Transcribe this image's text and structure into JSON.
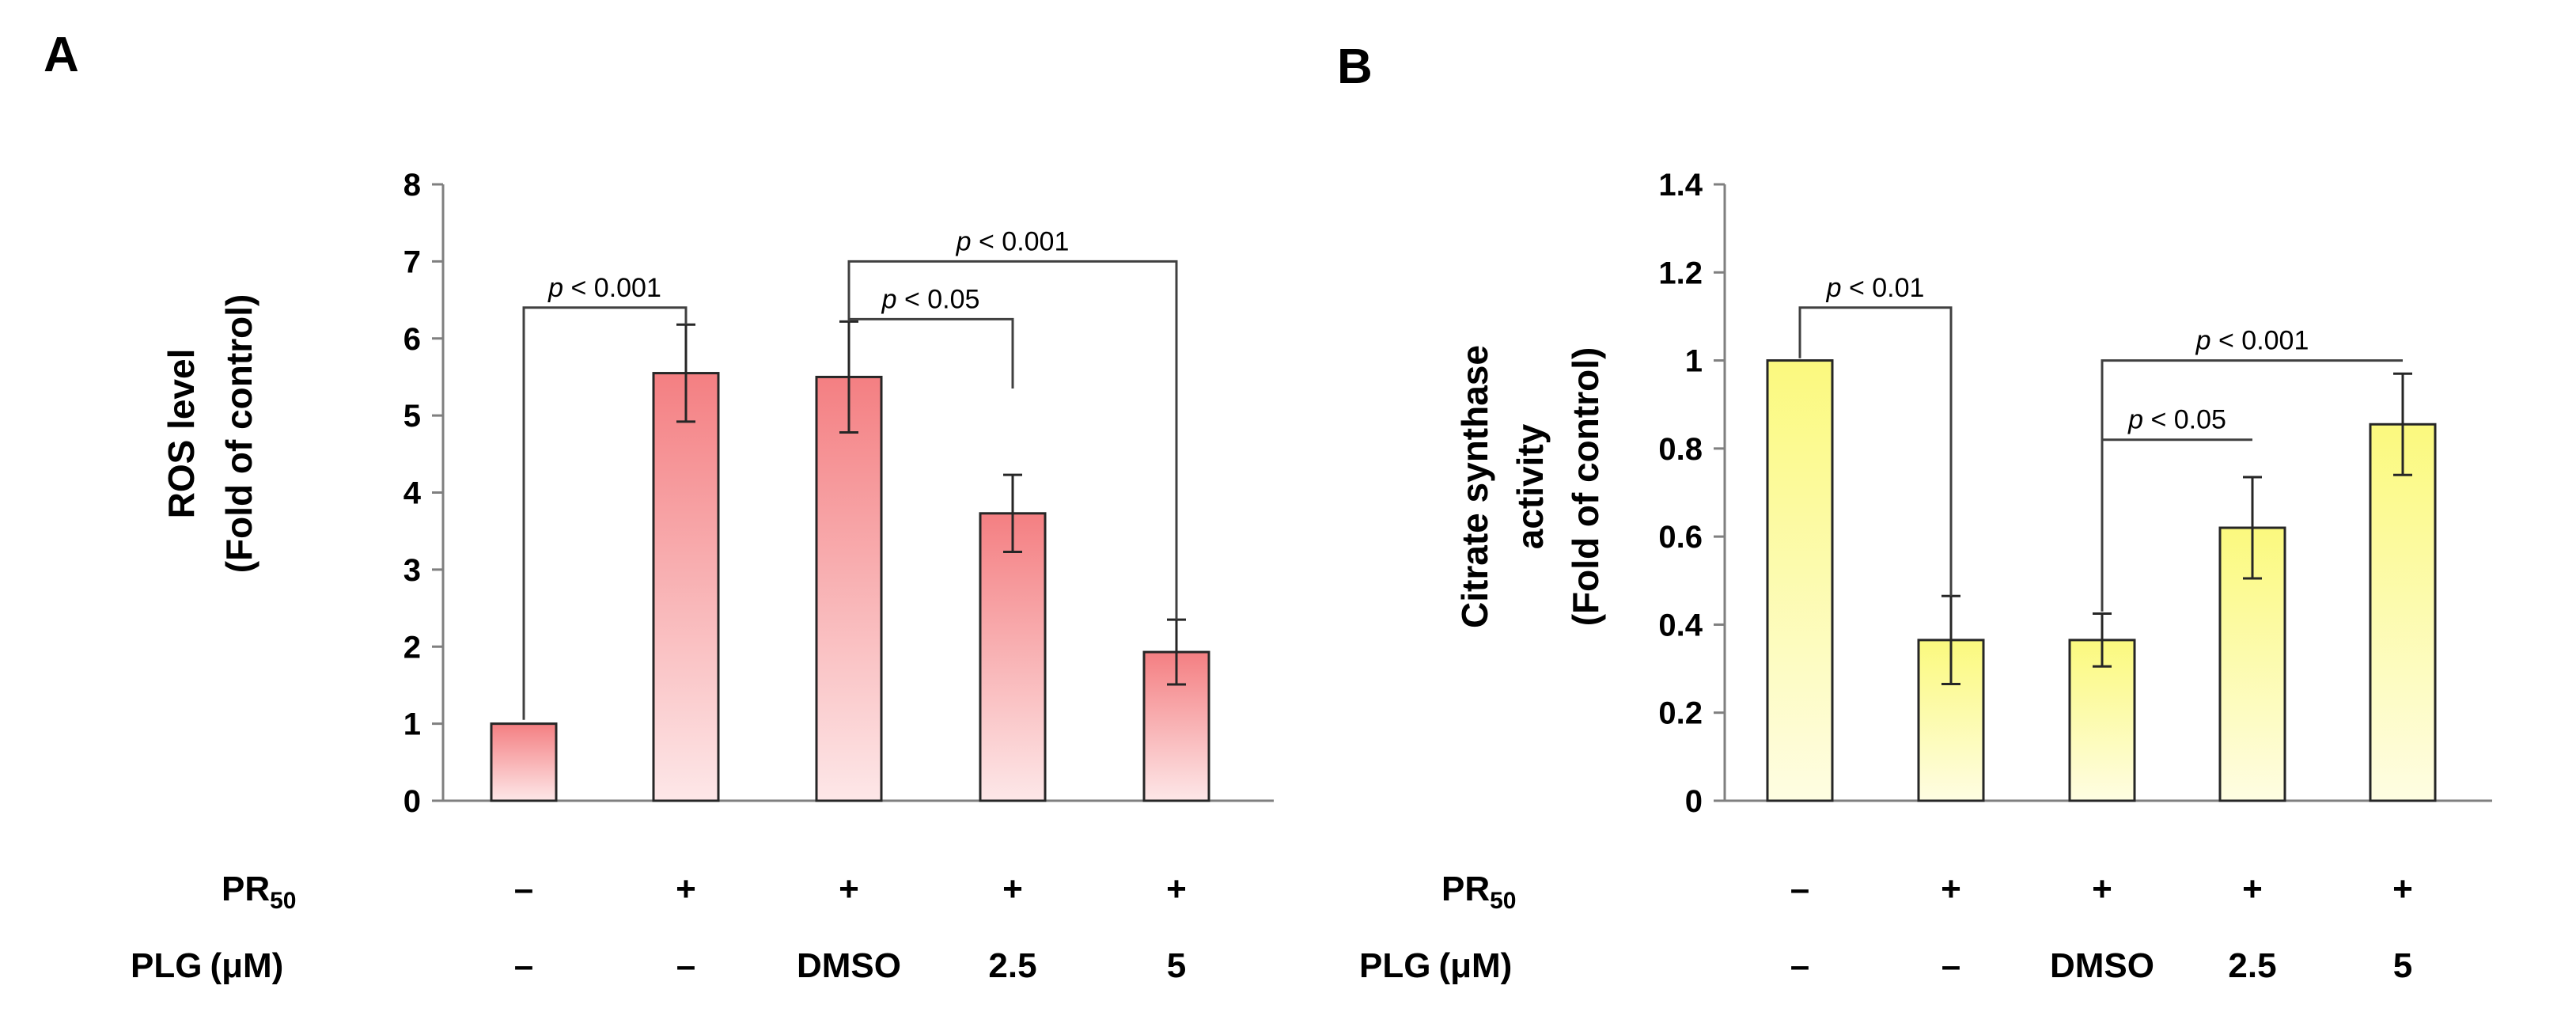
{
  "row_labels": {
    "pr_main": "PR",
    "pr_sub": "50",
    "plg_main": "PLG",
    "plg_unit": "(μM)"
  },
  "treatments": {
    "pr": [
      "–",
      "+",
      "+",
      "+",
      "+"
    ],
    "plg": [
      "–",
      "–",
      "DMSO",
      "2.5",
      "5"
    ]
  },
  "colors": {
    "panel_a_top": "#f47f82",
    "panel_a_bottom": "#fde7e8",
    "panel_b_top": "#fbf97e",
    "panel_b_bottom": "#fefde2",
    "axis": "#7f7f7f",
    "bracket": "#404040"
  },
  "chart_data": [
    {
      "panel_label": "A",
      "type": "bar",
      "ylabel_line1": "ROS level",
      "ylabel_line2": "(Fold of control)",
      "ylim": [
        0,
        8
      ],
      "yticks": [
        0,
        1,
        2,
        3,
        4,
        5,
        6,
        7,
        8
      ],
      "ytick_labels": [
        "0",
        "1",
        "2",
        "3",
        "4",
        "5",
        "6",
        "7",
        "8"
      ],
      "categories": [
        "– / –",
        "+ / –",
        "+ / DMSO",
        "+ / 2.5",
        "+ / 5"
      ],
      "values": [
        1.0,
        5.55,
        5.5,
        3.73,
        1.93
      ],
      "errors": [
        0,
        0.63,
        0.72,
        0.5,
        0.42
      ],
      "annotations": [
        {
          "p_label": "p",
          "text": " < 0.001",
          "from": 0,
          "to": 1,
          "level": 6.4,
          "from_end": 1.05,
          "to_end": 6.18
        },
        {
          "p_label": "p",
          "text": " < 0.05",
          "from": 2,
          "to": 3,
          "level": 6.25,
          "from_end": 6.22,
          "to_end": 5.35
        },
        {
          "p_label": "p",
          "text": " < 0.001",
          "from": 2,
          "to": 4,
          "level": 7.0,
          "from_end": 6.22,
          "to_end": 2.35
        }
      ]
    },
    {
      "panel_label": "B",
      "type": "bar",
      "ylabel_line1": "Citrate synthase",
      "ylabel_line2": "activity",
      "ylabel_line3": "(Fold of control)",
      "ylim": [
        0,
        1.4
      ],
      "yticks": [
        0,
        0.2,
        0.4,
        0.6,
        0.8,
        1.0,
        1.2,
        1.4
      ],
      "ytick_labels": [
        "0",
        "0.2",
        "0.4",
        "0.6",
        "0.8",
        "1",
        "1.2",
        "1.4"
      ],
      "categories": [
        "– / –",
        "+ / –",
        "+ / DMSO",
        "+ / 2.5",
        "+ / 5"
      ],
      "values": [
        1.0,
        0.365,
        0.365,
        0.62,
        0.855
      ],
      "errors": [
        0,
        0.1,
        0.06,
        0.115,
        0.115
      ],
      "annotations": [
        {
          "p_label": "p",
          "text": " < 0.01",
          "from": 0,
          "to": 1,
          "level": 1.12,
          "from_end": 1.005,
          "to_end": 0.465
        },
        {
          "p_label": "p",
          "text": " < 0.05",
          "from": 2,
          "to": 3,
          "level": 0.82,
          "from_end": 0.43,
          "to_end": 0.82
        },
        {
          "p_label": "p",
          "text": " < 0.001",
          "from": 2,
          "to": 4,
          "level": 1.0,
          "from_end": 0.43,
          "to_end": 1.0
        }
      ]
    }
  ]
}
